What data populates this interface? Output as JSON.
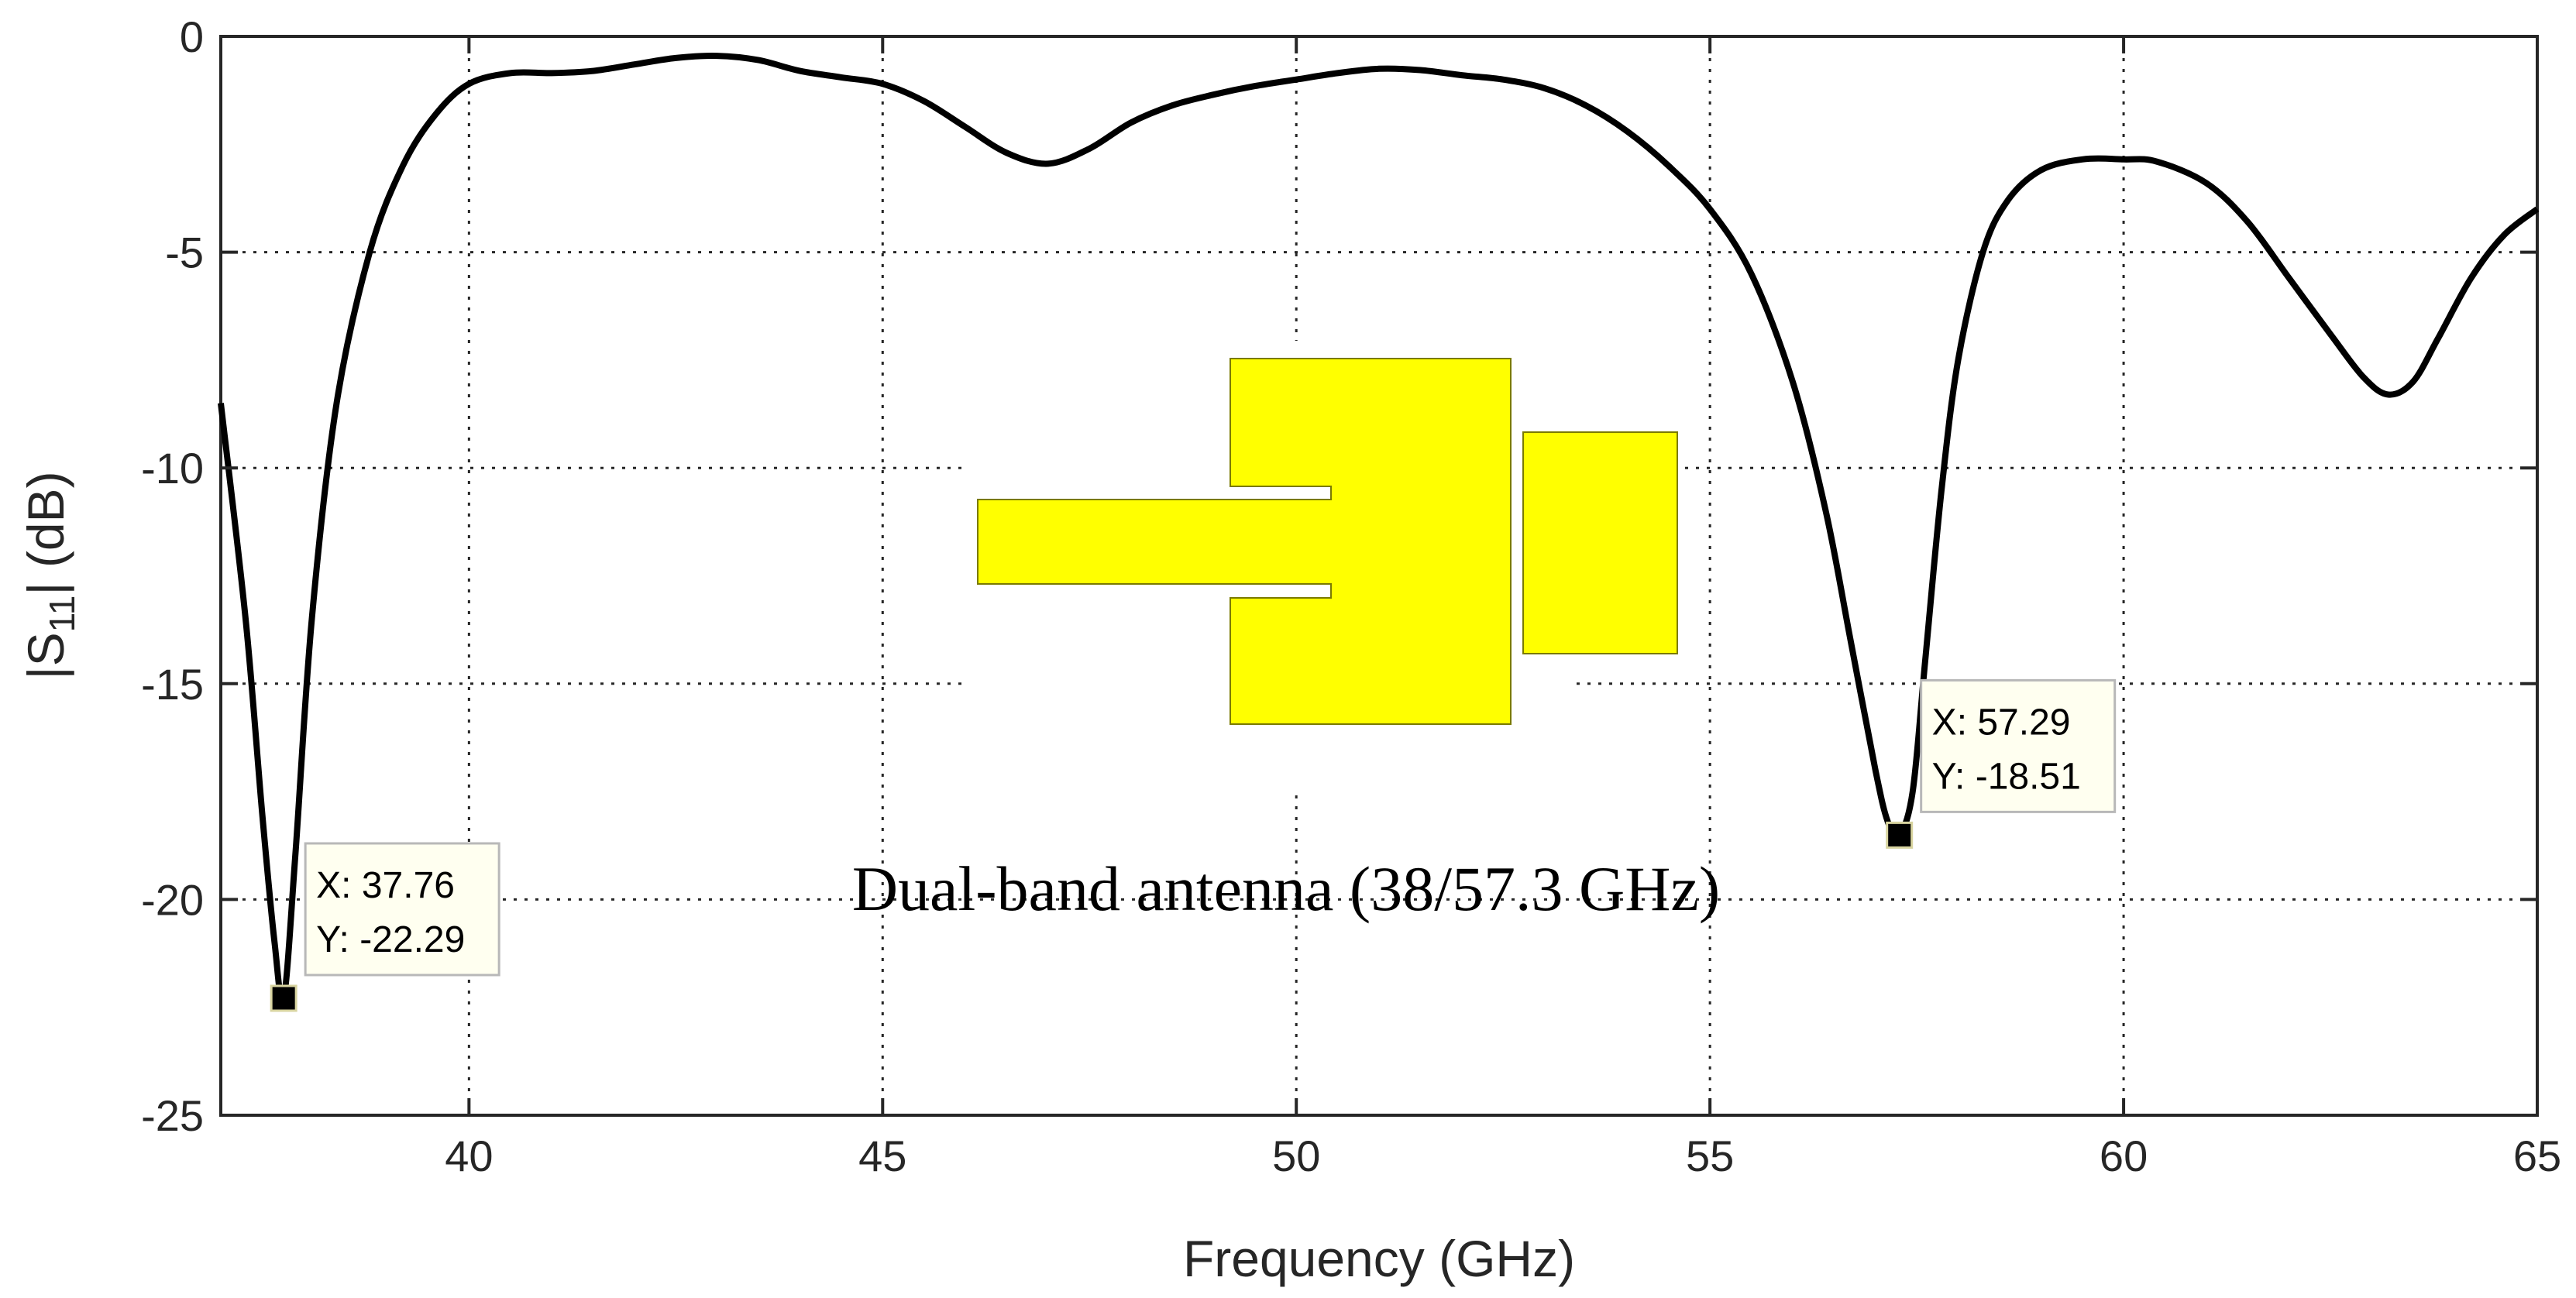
{
  "chart_data": {
    "type": "line",
    "title": "",
    "xlabel": "Frequency (GHz)",
    "ylabel_parts": {
      "pre": "|S",
      "sub": "11",
      "post": "| (dB)"
    },
    "xlim": [
      37,
      65
    ],
    "ylim": [
      -25,
      0
    ],
    "x_ticks": [
      40,
      45,
      50,
      55,
      60,
      65
    ],
    "y_ticks": [
      0,
      -5,
      -10,
      -15,
      -20,
      -25
    ],
    "grid": true,
    "series": [
      {
        "color": "#000000",
        "x": [
          37.0,
          37.3,
          37.5,
          37.65,
          37.76,
          37.9,
          38.1,
          38.4,
          38.8,
          39.2,
          39.6,
          40.0,
          40.5,
          41.0,
          41.5,
          42.0,
          42.5,
          43.0,
          43.5,
          44.0,
          44.5,
          45.0,
          45.5,
          46.0,
          46.5,
          47.0,
          47.5,
          48.0,
          48.5,
          49.0,
          49.5,
          50.0,
          50.5,
          51.0,
          51.5,
          52.0,
          52.5,
          53.0,
          53.5,
          54.0,
          54.5,
          55.0,
          55.5,
          56.0,
          56.4,
          56.7,
          57.0,
          57.15,
          57.29,
          57.45,
          57.6,
          57.8,
          58.0,
          58.3,
          58.6,
          59.0,
          59.5,
          60.0,
          60.4,
          61.0,
          61.5,
          62.0,
          62.5,
          62.9,
          63.2,
          63.5,
          63.8,
          64.2,
          64.6,
          65.0
        ],
        "y": [
          -8.5,
          -13.5,
          -18.0,
          -21.0,
          -22.29,
          -19.0,
          -13.5,
          -8.5,
          -5.0,
          -3.0,
          -1.8,
          -1.1,
          -0.85,
          -0.85,
          -0.8,
          -0.65,
          -0.5,
          -0.45,
          -0.55,
          -0.8,
          -0.95,
          -1.1,
          -1.5,
          -2.1,
          -2.7,
          -2.95,
          -2.6,
          -2.0,
          -1.6,
          -1.35,
          -1.15,
          -1.0,
          -0.85,
          -0.75,
          -0.78,
          -0.9,
          -1.0,
          -1.2,
          -1.6,
          -2.2,
          -3.0,
          -4.0,
          -5.5,
          -8.0,
          -11.0,
          -14.0,
          -17.0,
          -18.2,
          -18.51,
          -17.5,
          -14.5,
          -10.5,
          -7.5,
          -5.0,
          -3.8,
          -3.1,
          -2.85,
          -2.85,
          -2.9,
          -3.4,
          -4.3,
          -5.6,
          -6.9,
          -7.9,
          -8.3,
          -8.0,
          -7.0,
          -5.6,
          -4.6,
          -4.0
        ]
      }
    ],
    "annotations": [
      {
        "x": 37.76,
        "y": -22.29,
        "label_x": "X: 37.76",
        "label_y": "Y: -22.29"
      },
      {
        "x": 57.29,
        "y": -18.51,
        "label_x": "X: 57.29",
        "label_y": "Y: -18.51"
      }
    ],
    "inset_caption": "Dual-band antenna (38/57.3 GHz)",
    "inset_color": "#ffff00"
  }
}
